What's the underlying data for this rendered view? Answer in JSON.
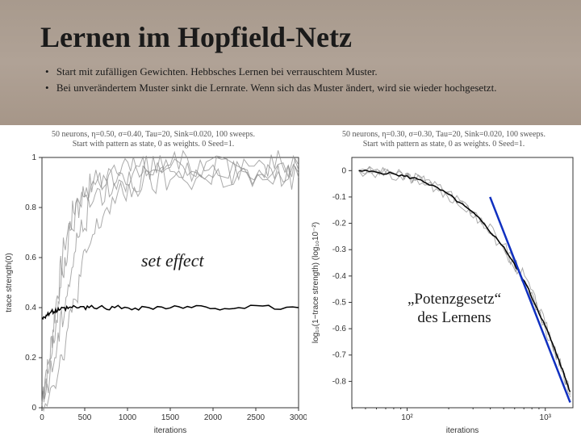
{
  "slide": {
    "title": "Lernen im Hopfield-Netz",
    "bullets": [
      "Start mit zufälligen Gewichten. Hebbsches Lernen bei verrauschtem Muster.",
      "Bei unverändertem Muster sinkt die Lernrate. Wenn sich das Muster ändert, wird sie wieder hochgesetzt."
    ],
    "background_color": "#b5a99c"
  },
  "left_chart": {
    "type": "line",
    "caption": "50 neurons, η=0.50, σ=0.40, Tau=20, Sink=0.020, 100 sweeps.\nStart with pattern as state, 0 as weights. 0 Seed=1.",
    "xlabel": "iterations",
    "ylabel": "trace strength(0)",
    "xlim": [
      0,
      3000
    ],
    "ylim": [
      0,
      1.0
    ],
    "xticks": [
      0,
      500,
      1000,
      1500,
      2000,
      2500,
      3000
    ],
    "yticks": [
      0,
      0.2,
      0.4,
      0.6,
      0.8,
      1.0
    ],
    "yticklabels": [
      "0",
      "0.2",
      "0.4",
      "0.6",
      "0.8",
      "1"
    ],
    "background_color": "#ffffff",
    "axis_color": "#333333",
    "tick_fontsize": 10,
    "traces_color": "#888888",
    "traces_opacity": 0.7,
    "black_line_color": "#000000",
    "traces": [
      {
        "x": [
          0,
          80,
          160,
          260,
          400,
          600,
          900,
          1300,
          1800,
          2400,
          3000
        ],
        "y": [
          0.02,
          0.18,
          0.4,
          0.65,
          0.82,
          0.9,
          0.94,
          0.95,
          0.95,
          0.95,
          0.95
        ]
      },
      {
        "x": [
          0,
          120,
          220,
          340,
          520,
          780,
          1100,
          1500,
          2000,
          2600,
          3000
        ],
        "y": [
          0.02,
          0.22,
          0.48,
          0.72,
          0.88,
          0.93,
          0.96,
          0.97,
          0.97,
          0.97,
          0.97
        ]
      },
      {
        "x": [
          0,
          150,
          280,
          420,
          620,
          900,
          1300,
          1800,
          2400,
          3000
        ],
        "y": [
          0.01,
          0.2,
          0.44,
          0.68,
          0.85,
          0.91,
          0.93,
          0.94,
          0.94,
          0.94
        ]
      },
      {
        "x": [
          0,
          200,
          350,
          520,
          760,
          1080,
          1500,
          2000,
          2600,
          3000
        ],
        "y": [
          0.01,
          0.16,
          0.38,
          0.62,
          0.8,
          0.88,
          0.91,
          0.92,
          0.92,
          0.92
        ]
      }
    ],
    "noise_amplitude": 0.06,
    "black_line": {
      "x": [
        0,
        100,
        200,
        350,
        550,
        850,
        1250,
        1750,
        2300,
        3000
      ],
      "y": [
        0.36,
        0.38,
        0.39,
        0.4,
        0.4,
        0.4,
        0.4,
        0.4,
        0.4,
        0.4
      ]
    },
    "annotation": "set effect",
    "annotation_fontsize": 22,
    "annotation_style": "italic"
  },
  "right_chart": {
    "type": "line",
    "caption": "50 neurons, η=0.30, σ=0.30, Tau=20, Sink=0.020, 100 sweeps.\nStart with pattern as state, 0 as weights. 0 Seed=1.",
    "xlabel": "iterations",
    "ylabel": "log₁₀(1−trace strength)  (log₁₀10⁻²)",
    "x_scale": "log",
    "xlim_log": [
      1.6,
      3.2
    ],
    "ylim": [
      -0.9,
      0.05
    ],
    "xticks_log": [
      2,
      3
    ],
    "xticklabels": [
      "10²",
      "10³"
    ],
    "yticks": [
      -0.8,
      -0.7,
      -0.6,
      -0.5,
      -0.4,
      -0.3,
      -0.2,
      -0.1,
      0
    ],
    "yticklabels": [
      "-0.8",
      "-0.7",
      "-0.6",
      "-0.5",
      "-0.4",
      "-0.3",
      "-0.2",
      "-0.1",
      "0"
    ],
    "background_color": "#ffffff",
    "axis_color": "#333333",
    "tick_fontsize": 10,
    "traces_color": "#888888",
    "black_line_color": "#000000",
    "blue_line_color": "#1030c0",
    "traces": [
      {
        "xlog": [
          1.65,
          1.9,
          2.1,
          2.3,
          2.5,
          2.7,
          2.85,
          3.0,
          3.1,
          3.18
        ],
        "y": [
          0.0,
          -0.01,
          -0.03,
          -0.08,
          -0.16,
          -0.28,
          -0.4,
          -0.58,
          -0.72,
          -0.85
        ]
      },
      {
        "xlog": [
          1.65,
          1.95,
          2.15,
          2.35,
          2.55,
          2.72,
          2.88,
          3.02,
          3.12,
          3.18
        ],
        "y": [
          0.0,
          -0.02,
          -0.05,
          -0.11,
          -0.2,
          -0.32,
          -0.45,
          -0.62,
          -0.75,
          -0.86
        ]
      },
      {
        "xlog": [
          1.65,
          1.92,
          2.12,
          2.32,
          2.52,
          2.7,
          2.86,
          3.0,
          3.1,
          3.18
        ],
        "y": [
          0.0,
          -0.015,
          -0.04,
          -0.1,
          -0.18,
          -0.3,
          -0.43,
          -0.6,
          -0.73,
          -0.84
        ]
      }
    ],
    "noise_amplitude": 0.02,
    "black_line": {
      "xlog": [
        1.65,
        1.9,
        2.1,
        2.3,
        2.5,
        2.7,
        2.85,
        3.0,
        3.1,
        3.18
      ],
      "y": [
        0.0,
        -0.012,
        -0.035,
        -0.09,
        -0.17,
        -0.29,
        -0.42,
        -0.59,
        -0.72,
        -0.84
      ]
    },
    "blue_line": {
      "xlog": [
        2.6,
        3.18
      ],
      "y": [
        -0.1,
        -0.88
      ]
    },
    "annotation": "„Potenzgesetz“\ndes Lernens",
    "annotation_fontsize": 19
  }
}
